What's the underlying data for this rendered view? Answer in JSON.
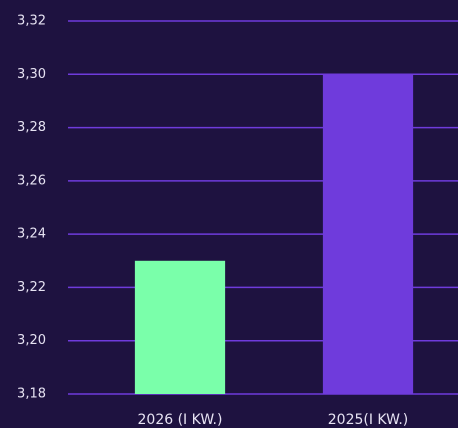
{
  "chart_data": {
    "type": "bar",
    "categories": [
      "2026 (I KW.)",
      "2025(I KW.)"
    ],
    "values": [
      3.23,
      3.3
    ],
    "colors": [
      "#7affaa",
      "#6f3bdc"
    ],
    "ylim": [
      3.18,
      3.32
    ],
    "yticks": [
      {
        "value": 3.18,
        "label": "3,18"
      },
      {
        "value": 3.2,
        "label": "3,20"
      },
      {
        "value": 3.22,
        "label": "3,22"
      },
      {
        "value": 3.24,
        "label": "3,24"
      },
      {
        "value": 3.26,
        "label": "3,26"
      },
      {
        "value": 3.28,
        "label": "3,28"
      },
      {
        "value": 3.3,
        "label": "3,30"
      },
      {
        "value": 3.32,
        "label": "3,32"
      }
    ],
    "grid": true
  }
}
